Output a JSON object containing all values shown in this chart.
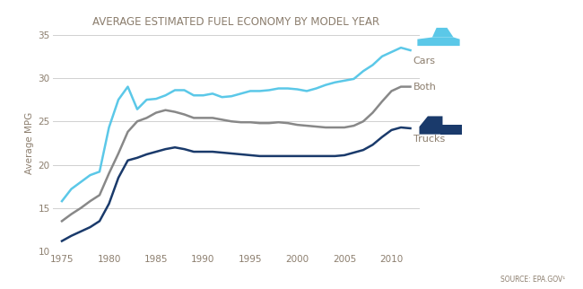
{
  "title": "AVERAGE ESTIMATED FUEL ECONOMY BY MODEL YEAR",
  "ylabel": "Average MPG",
  "source": "SOURCE: EPA.GOV¹",
  "background_color": "#ffffff",
  "grid_color": "#d0d0d0",
  "cars_color": "#5bc8e8",
  "both_color": "#888888",
  "trucks_color": "#1a3a6b",
  "label_color": "#8c7e6e",
  "years": [
    1975,
    1976,
    1977,
    1978,
    1979,
    1980,
    1981,
    1982,
    1983,
    1984,
    1985,
    1986,
    1987,
    1988,
    1989,
    1990,
    1991,
    1992,
    1993,
    1994,
    1995,
    1996,
    1997,
    1998,
    1999,
    2000,
    2001,
    2002,
    2003,
    2004,
    2005,
    2006,
    2007,
    2008,
    2009,
    2010,
    2011,
    2012
  ],
  "cars": [
    15.8,
    17.2,
    18.0,
    18.8,
    19.2,
    24.3,
    27.5,
    29.0,
    26.4,
    27.5,
    27.6,
    28.0,
    28.6,
    28.6,
    28.0,
    28.0,
    28.2,
    27.8,
    27.9,
    28.2,
    28.5,
    28.5,
    28.6,
    28.8,
    28.8,
    28.7,
    28.5,
    28.8,
    29.2,
    29.5,
    29.7,
    29.9,
    30.8,
    31.5,
    32.5,
    33.0,
    33.5,
    33.2
  ],
  "both": [
    13.5,
    14.3,
    15.0,
    15.8,
    16.5,
    19.0,
    21.3,
    23.8,
    25.0,
    25.4,
    26.0,
    26.3,
    26.1,
    25.8,
    25.4,
    25.4,
    25.4,
    25.2,
    25.0,
    24.9,
    24.9,
    24.8,
    24.8,
    24.9,
    24.8,
    24.6,
    24.5,
    24.4,
    24.3,
    24.3,
    24.3,
    24.5,
    25.0,
    26.0,
    27.3,
    28.5,
    29.0,
    29.0
  ],
  "trucks": [
    11.2,
    11.8,
    12.3,
    12.8,
    13.5,
    15.5,
    18.5,
    20.5,
    20.8,
    21.2,
    21.5,
    21.8,
    22.0,
    21.8,
    21.5,
    21.5,
    21.5,
    21.4,
    21.3,
    21.2,
    21.1,
    21.0,
    21.0,
    21.0,
    21.0,
    21.0,
    21.0,
    21.0,
    21.0,
    21.0,
    21.1,
    21.4,
    21.7,
    22.3,
    23.2,
    24.0,
    24.3,
    24.2
  ],
  "ylim": [
    10,
    35
  ],
  "yticks": [
    10,
    15,
    20,
    25,
    30,
    35
  ],
  "xlim": [
    1974,
    2013
  ]
}
